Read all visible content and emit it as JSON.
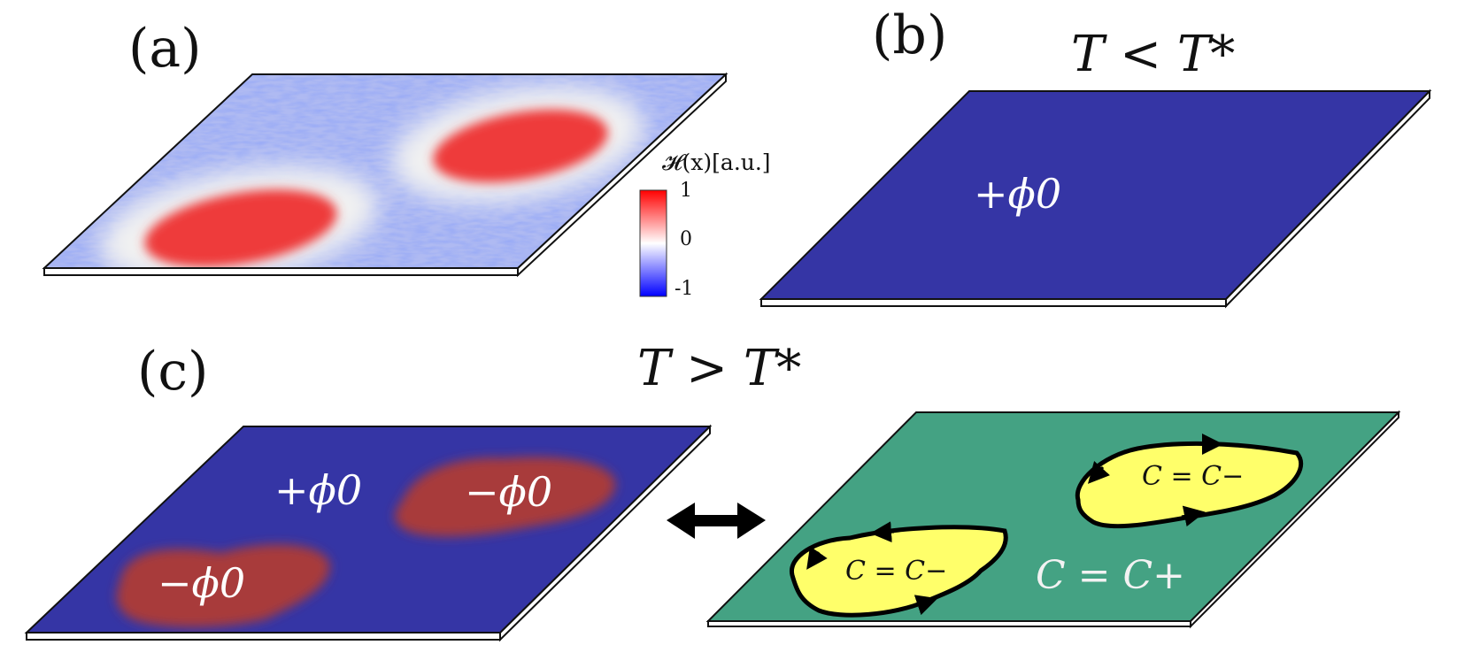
{
  "panels": {
    "a": {
      "label": "(a)"
    },
    "b": {
      "label": "(b)",
      "condition": "T < T*",
      "phase_label": "+ϕ0"
    },
    "c": {
      "label": "(c)",
      "condition": "T > T*",
      "domain_labels": [
        "+ϕ0",
        "−ϕ0",
        "−ϕ0"
      ],
      "region_labels": [
        "C = C−",
        "C = C−",
        "C = C+"
      ]
    }
  },
  "colorbar": {
    "title": "𝓗(x)[a.u.]",
    "ticks": [
      "1",
      "0",
      "-1"
    ],
    "colors": {
      "max": "#ff0000",
      "mid": "#ffffff",
      "min": "#0000ff"
    }
  },
  "colors": {
    "phase_plus": "#3535a5",
    "phase_minus": "#a83a3a",
    "heat_red": "#ee3b3b",
    "heat_blue": "#5a6fe0",
    "chern_plane": "#44a283",
    "chern_island": "#ffff6a",
    "slab_edge": "#ffffff"
  },
  "icons": [
    "double-arrow-icon",
    "orientation-arrow-icon"
  ]
}
